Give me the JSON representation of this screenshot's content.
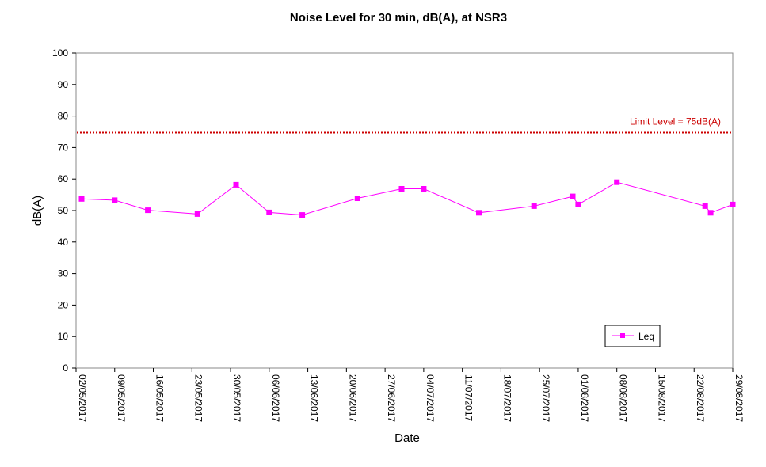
{
  "chart_data": {
    "type": "line",
    "title": "Noise Level for 30 min, dB(A), at NSR3",
    "xlabel": "Date",
    "ylabel": "dB(A)",
    "ylim": [
      0,
      100
    ],
    "yticks": [
      0,
      10,
      20,
      30,
      40,
      50,
      60,
      70,
      80,
      90,
      100
    ],
    "xlim": [
      "2017-05-02",
      "2017-08-29"
    ],
    "xticks": [
      "02/05/2017",
      "09/05/2017",
      "16/05/2017",
      "23/05/2017",
      "30/05/2017",
      "06/06/2017",
      "13/06/2017",
      "20/06/2017",
      "27/06/2017",
      "04/07/2017",
      "11/07/2017",
      "18/07/2017",
      "25/07/2017",
      "01/08/2017",
      "08/08/2017",
      "15/08/2017",
      "22/08/2017",
      "29/08/2017"
    ],
    "grid": false,
    "legend": "bottom-right",
    "series": [
      {
        "name": "Leq",
        "color": "#ff00ff",
        "marker": "square",
        "points": [
          {
            "x": "2017-05-03",
            "y": 53.7
          },
          {
            "x": "2017-05-09",
            "y": 53.3
          },
          {
            "x": "2017-05-15",
            "y": 50.1
          },
          {
            "x": "2017-05-24",
            "y": 48.9
          },
          {
            "x": "2017-05-31",
            "y": 58.2
          },
          {
            "x": "2017-06-06",
            "y": 49.4
          },
          {
            "x": "2017-06-12",
            "y": 48.6
          },
          {
            "x": "2017-06-22",
            "y": 53.9
          },
          {
            "x": "2017-06-30",
            "y": 56.9
          },
          {
            "x": "2017-07-04",
            "y": 56.9
          },
          {
            "x": "2017-07-14",
            "y": 49.3
          },
          {
            "x": "2017-07-24",
            "y": 51.4
          },
          {
            "x": "2017-07-31",
            "y": 54.5
          },
          {
            "x": "2017-08-01",
            "y": 51.9
          },
          {
            "x": "2017-08-08",
            "y": 59.0
          },
          {
            "x": "2017-08-24",
            "y": 51.4
          },
          {
            "x": "2017-08-25",
            "y": 49.3
          },
          {
            "x": "2017-08-29",
            "y": 51.9
          }
        ]
      }
    ],
    "limit": {
      "value": 75,
      "label": "Limit Level  = 75dB(A)",
      "color": "#cc0000",
      "style": "dotted"
    }
  }
}
